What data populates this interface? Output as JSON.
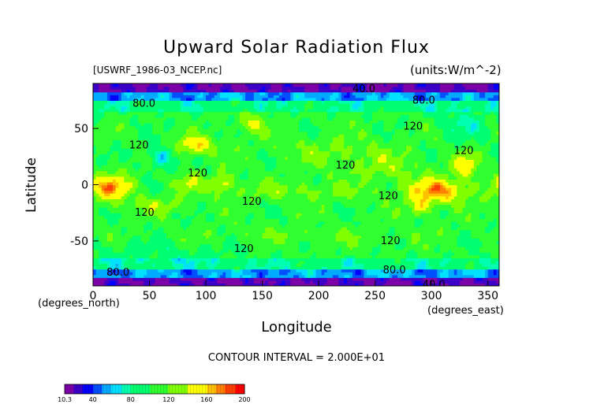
{
  "chart_data": {
    "type": "heatmap",
    "title": "Upward Solar Radiation Flux",
    "subtitle_left": "[USWRF_1986-03_NCEP.nc]",
    "subtitle_right": "(units:W/m^-2)",
    "xlabel": "Longitude",
    "xunit": "(degrees_east)",
    "ylabel": "Latitude",
    "yunit": "(degrees_north)",
    "xlim": [
      0,
      360
    ],
    "ylim": [
      -90,
      90
    ],
    "x_ticks": [
      0,
      50,
      100,
      150,
      200,
      250,
      300,
      350
    ],
    "y_ticks": [
      -50,
      0,
      50
    ],
    "contour_interval_text": "CONTOUR INTERVAL = 2.000E+01",
    "contour_labels": [
      {
        "text": "40.0",
        "x": 230,
        "y": 85
      },
      {
        "text": "80.0",
        "x": 35,
        "y": 72
      },
      {
        "text": "80.0",
        "x": 283,
        "y": 75
      },
      {
        "text": "120",
        "x": 275,
        "y": 52
      },
      {
        "text": "120",
        "x": 32,
        "y": 35
      },
      {
        "text": "120",
        "x": 84,
        "y": 10
      },
      {
        "text": "120",
        "x": 215,
        "y": 17
      },
      {
        "text": "120",
        "x": 320,
        "y": 30
      },
      {
        "text": "120",
        "x": 253,
        "y": -10
      },
      {
        "text": "120",
        "x": 37,
        "y": -25
      },
      {
        "text": "120",
        "x": 132,
        "y": -15
      },
      {
        "text": "120",
        "x": 255,
        "y": -50
      },
      {
        "text": "120",
        "x": 125,
        "y": -57
      },
      {
        "text": "80.0",
        "x": 12,
        "y": -78
      },
      {
        "text": "80.0",
        "x": 257,
        "y": -76
      },
      {
        "text": "40.0",
        "x": 292,
        "y": -89
      }
    ],
    "field_features": [
      {
        "x": 15,
        "y": -2,
        "sx": 14,
        "sy": 9,
        "amp": 62
      },
      {
        "x": 305,
        "y": -5,
        "sx": 20,
        "sy": 8,
        "amp": 65
      },
      {
        "x": 290,
        "y": -20,
        "sx": 8,
        "sy": 6,
        "amp": 40
      },
      {
        "x": 330,
        "y": 18,
        "sx": 8,
        "sy": 8,
        "amp": 45
      },
      {
        "x": 90,
        "y": 35,
        "sx": 12,
        "sy": 6,
        "amp": 55
      },
      {
        "x": 115,
        "y": 2,
        "sx": 7,
        "sy": 6,
        "amp": 42
      },
      {
        "x": 140,
        "y": 55,
        "sx": 9,
        "sy": 6,
        "amp": 38
      },
      {
        "x": 85,
        "y": 2,
        "sx": 10,
        "sy": 6,
        "amp": 30
      },
      {
        "x": 60,
        "y": 25,
        "sx": 8,
        "sy": 7,
        "amp": -45
      },
      {
        "x": 330,
        "y": 55,
        "sx": 15,
        "sy": 10,
        "amp": -25
      },
      {
        "x": 215,
        "y": 30,
        "sx": 40,
        "sy": 10,
        "amp": 18
      },
      {
        "x": 180,
        "y": -5,
        "sx": 45,
        "sy": 6,
        "amp": 22
      },
      {
        "x": 200,
        "y": -45,
        "sx": 80,
        "sy": 6,
        "amp": 12
      },
      {
        "x": 60,
        "y": -60,
        "sx": 50,
        "sy": 8,
        "amp": -15
      },
      {
        "x": 60,
        "y": -18,
        "sx": 20,
        "sy": 5,
        "amp": 25
      },
      {
        "x": 260,
        "y": 15,
        "sx": 25,
        "sy": 8,
        "amp": 20
      }
    ],
    "colorbar": {
      "min_label": "10.3",
      "labels": [
        "40",
        "80",
        "120",
        "160",
        "200"
      ],
      "label_values": [
        40,
        80,
        120,
        160,
        200
      ],
      "vmin": 10.3,
      "vmax": 200,
      "colors": [
        "#7b00a8",
        "#3c00c8",
        "#0000ff",
        "#0050ff",
        "#00aaff",
        "#00e0ff",
        "#00ffb0",
        "#00ff70",
        "#30ff30",
        "#80ff00",
        "#ffff00",
        "#ffc000",
        "#ff8000",
        "#ff4000",
        "#ff0000"
      ],
      "stops": [
        10.3,
        20,
        30,
        40,
        50,
        60,
        70,
        80,
        100,
        120,
        140,
        160,
        170,
        180,
        190,
        200
      ]
    }
  }
}
